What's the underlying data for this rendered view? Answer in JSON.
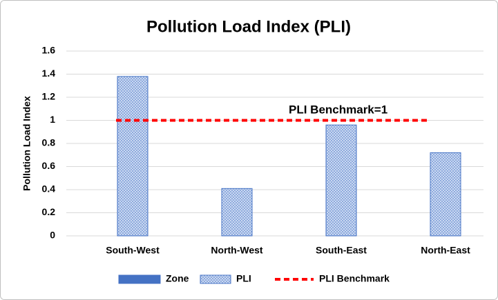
{
  "chart_data": {
    "type": "bar",
    "title": "Pollution Load Index (PLI)",
    "y_label": "Pollution Load Index",
    "annotation": "PLI Benchmark=1",
    "categories": [
      "South-West",
      "North-West",
      "South-East",
      "North-East"
    ],
    "series": [
      {
        "name": "Zone",
        "color": "#4472c4",
        "values": [
          null,
          null,
          null,
          null
        ]
      },
      {
        "name": "PLI",
        "color": "#4472c4",
        "pattern": "crosshatch",
        "values": [
          1.38,
          0.41,
          0.96,
          0.72
        ]
      },
      {
        "name": "PLI Benchmark",
        "type": "line",
        "dashed": true,
        "color": "#ff0000",
        "values": [
          1,
          1,
          1,
          1
        ]
      }
    ],
    "ylim": [
      0,
      1.6
    ],
    "yticks": [
      0,
      {
        "value": 0.2,
        "label": "0.2"
      },
      {
        "value": 0.4,
        "label": "0.4"
      },
      {
        "value": 0.6,
        "label": "0.6"
      },
      {
        "value": 0.8,
        "label": "0.8"
      },
      1,
      {
        "value": 1.2,
        "label": "1.2"
      },
      {
        "value": 1.4,
        "label": "1.4"
      },
      {
        "value": 1.6,
        "label": "1.6"
      }
    ],
    "grid": true,
    "legend": "bottom"
  }
}
